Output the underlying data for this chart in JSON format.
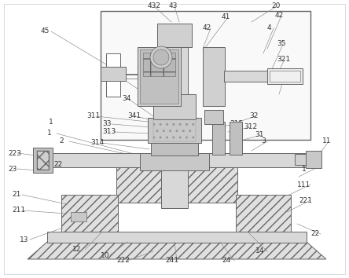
{
  "bg": "#ffffff",
  "lc": "#666666",
  "lc2": "#888888",
  "fc_light": "#e8e8e8",
  "fc_med": "#d0d0d0",
  "fc_dark": "#b0b0b0",
  "fc_white": "#ffffff",
  "lw": 0.7,
  "fs": 6.5
}
